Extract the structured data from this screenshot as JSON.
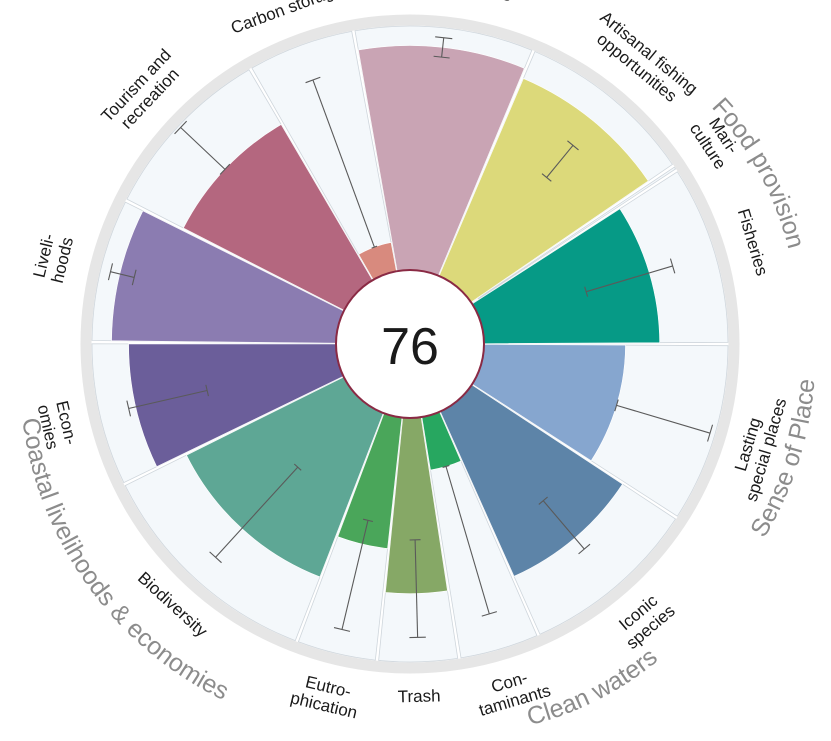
{
  "chart_data": {
    "type": "radial-bar",
    "center_score": "76",
    "scale": [
      0,
      100
    ],
    "petals": [
      {
        "key": "fisheries",
        "lines": [
          "Fisheries"
        ],
        "score": 72,
        "err_lo": 45,
        "err_hi": 82,
        "color": "#069a86",
        "weight": 1.0
      },
      {
        "key": "mariculture",
        "lines": [
          "Mari-",
          "culture"
        ],
        "score": 3,
        "err_lo": 3,
        "err_hi": 3,
        "color": "#7d9b4c",
        "weight": 0.03
      },
      {
        "key": "artisanal_fishing",
        "lines": [
          "Artisanal fishing",
          "opportunities"
        ],
        "score": 88,
        "err_lo": 58,
        "err_hi": 75,
        "color": "#dcd97a",
        "weight": 1.0
      },
      {
        "key": "natural_products",
        "lines": [
          "Natural products"
        ],
        "score": 92,
        "err_lo": 88,
        "err_hi": 96,
        "color": "#c9a4b4",
        "weight": 1.0
      },
      {
        "key": "carbon_storage",
        "lines": [
          "Carbon storage"
        ],
        "score": 12,
        "err_lo": 12,
        "err_hi": 85,
        "color": "#d88a7e",
        "weight": 0.6
      },
      {
        "key": "tourism",
        "lines": [
          "Tourism and",
          "recreation"
        ],
        "score": 74,
        "err_lo": 74,
        "err_hi": 99,
        "color": "#b4677f",
        "weight": 1.0
      },
      {
        "key": "livelihoods",
        "lines": [
          "Liveli-",
          "hoods"
        ],
        "score": 92,
        "err_lo": 86,
        "err_hi": 96,
        "color": "#8b7cb1",
        "weight": 0.8
      },
      {
        "key": "economies",
        "lines": [
          "Econ-",
          "omies"
        ],
        "score": 85,
        "err_lo": 55,
        "err_hi": 88,
        "color": "#6b5e9a",
        "weight": 0.8
      },
      {
        "key": "biodiversity",
        "lines": [
          "Biodiversity"
        ],
        "score": 72,
        "err_lo": 38,
        "err_hi": 88,
        "color": "#5ea795",
        "weight": 1.3
      },
      {
        "key": "eutrophication",
        "lines": [
          "Eutro-",
          "phication"
        ],
        "score": 54,
        "err_lo": 44,
        "err_hi": 90,
        "color": "#4aa65a",
        "weight": 0.45
      },
      {
        "key": "trash",
        "lines": [
          "Trash"
        ],
        "score": 72,
        "err_lo": 50,
        "err_hi": 90,
        "color": "#86a866",
        "weight": 0.45
      },
      {
        "key": "contaminants",
        "lines": [
          "Con-",
          "taminants"
        ],
        "score": 22,
        "err_lo": 22,
        "err_hi": 85,
        "color": "#27a760",
        "weight": 0.45
      },
      {
        "key": "iconic_species",
        "lines": [
          "Iconic",
          "species"
        ],
        "score": 74,
        "err_lo": 54,
        "err_hi": 80,
        "color": "#5d84a8",
        "weight": 1.0
      },
      {
        "key": "lasting_places",
        "lines": [
          "Lasting",
          "special places"
        ],
        "score": 58,
        "err_lo": 58,
        "err_hi": 98,
        "color": "#86a6cf",
        "weight": 1.0
      }
    ],
    "goals": [
      {
        "key": "food",
        "label": "Food provision"
      },
      {
        "key": "coastal",
        "label": "Coastal livelihoods & economies"
      },
      {
        "key": "clean",
        "label": "Clean waters"
      },
      {
        "key": "sense",
        "label": "Sense of Place"
      }
    ]
  }
}
